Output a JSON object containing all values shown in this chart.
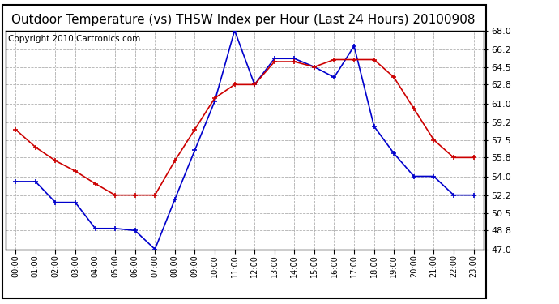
{
  "title": "Outdoor Temperature (vs) THSW Index per Hour (Last 24 Hours) 20100908",
  "copyright": "Copyright 2010 Cartronics.com",
  "hours": [
    "00:00",
    "01:00",
    "02:00",
    "03:00",
    "04:00",
    "05:00",
    "06:00",
    "07:00",
    "08:00",
    "09:00",
    "10:00",
    "11:00",
    "12:00",
    "13:00",
    "14:00",
    "15:00",
    "16:00",
    "17:00",
    "18:00",
    "19:00",
    "20:00",
    "21:00",
    "22:00",
    "23:00"
  ],
  "temp": [
    58.5,
    56.8,
    55.5,
    54.5,
    53.3,
    52.2,
    52.2,
    52.2,
    55.5,
    58.5,
    61.5,
    62.8,
    62.8,
    65.0,
    65.0,
    64.5,
    65.2,
    65.2,
    65.2,
    63.5,
    60.5,
    57.5,
    55.8,
    55.8
  ],
  "thsw": [
    53.5,
    53.5,
    51.5,
    51.5,
    49.0,
    49.0,
    48.8,
    47.0,
    51.8,
    56.5,
    61.2,
    68.0,
    62.8,
    65.3,
    65.3,
    64.5,
    63.5,
    66.5,
    58.8,
    56.2,
    54.0,
    54.0,
    52.2,
    52.2
  ],
  "ylim": [
    47.0,
    68.0
  ],
  "yticks": [
    47.0,
    48.8,
    50.5,
    52.2,
    54.0,
    55.8,
    57.5,
    59.2,
    61.0,
    62.8,
    64.5,
    66.2,
    68.0
  ],
  "temp_color": "#cc0000",
  "thsw_color": "#0000cc",
  "bg_color": "#ffffff",
  "grid_color": "#b0b0b0",
  "title_fontsize": 11,
  "copyright_fontsize": 7.5
}
